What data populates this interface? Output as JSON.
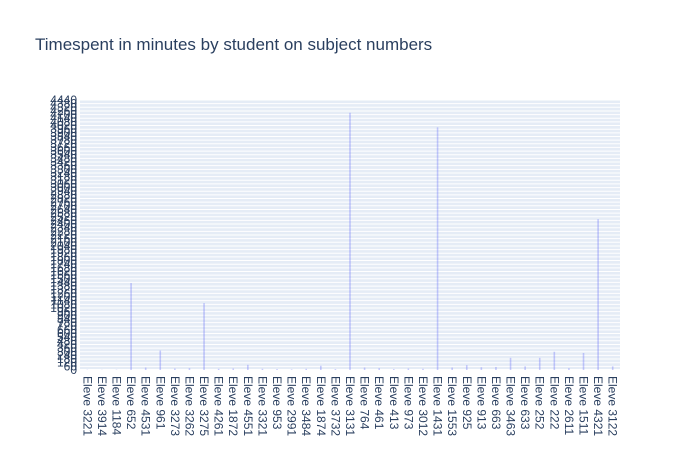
{
  "chart_data": {
    "type": "bar",
    "title": "Timespent in minutes by student on subject numbers",
    "xlabel": "",
    "ylabel": "",
    "ylim": [
      0,
      4440
    ],
    "y_tick_step": 60,
    "grid": true,
    "colors": {
      "bar": "#636efa",
      "grid": "#ffffff",
      "plot_bg": "#e5ecf6",
      "text": "#2a3f5f"
    },
    "categories": [
      "Eleve 3221",
      "Eleve 3914",
      "Eleve 1184",
      "Eleve 652",
      "Eleve 4531",
      "Eleve 961",
      "Eleve 3273",
      "Eleve 3262",
      "Eleve 3275",
      "Eleve 4261",
      "Eleve 1872",
      "Eleve 4551",
      "Eleve 3321",
      "Eleve 953",
      "Eleve 2991",
      "Eleve 3484",
      "Eleve 1874",
      "Eleve 3732",
      "Eleve 3131",
      "Eleve 764",
      "Eleve 461",
      "Eleve 413",
      "Eleve 973",
      "Eleve 3012",
      "Eleve 1431",
      "Eleve 1553",
      "Eleve 925",
      "Eleve 913",
      "Eleve 663",
      "Eleve 3463",
      "Eleve 633",
      "Eleve 252",
      "Eleve 222",
      "Eleve 2611",
      "Eleve 1511",
      "Eleve 4321",
      "Eleve 3122"
    ],
    "values": [
      4,
      3,
      5,
      1430,
      40,
      320,
      25,
      30,
      1100,
      20,
      25,
      85,
      20,
      15,
      10,
      20,
      70,
      15,
      4230,
      40,
      30,
      15,
      25,
      20,
      3990,
      40,
      80,
      45,
      50,
      200,
      60,
      200,
      300,
      30,
      280,
      2480,
      60
    ]
  }
}
